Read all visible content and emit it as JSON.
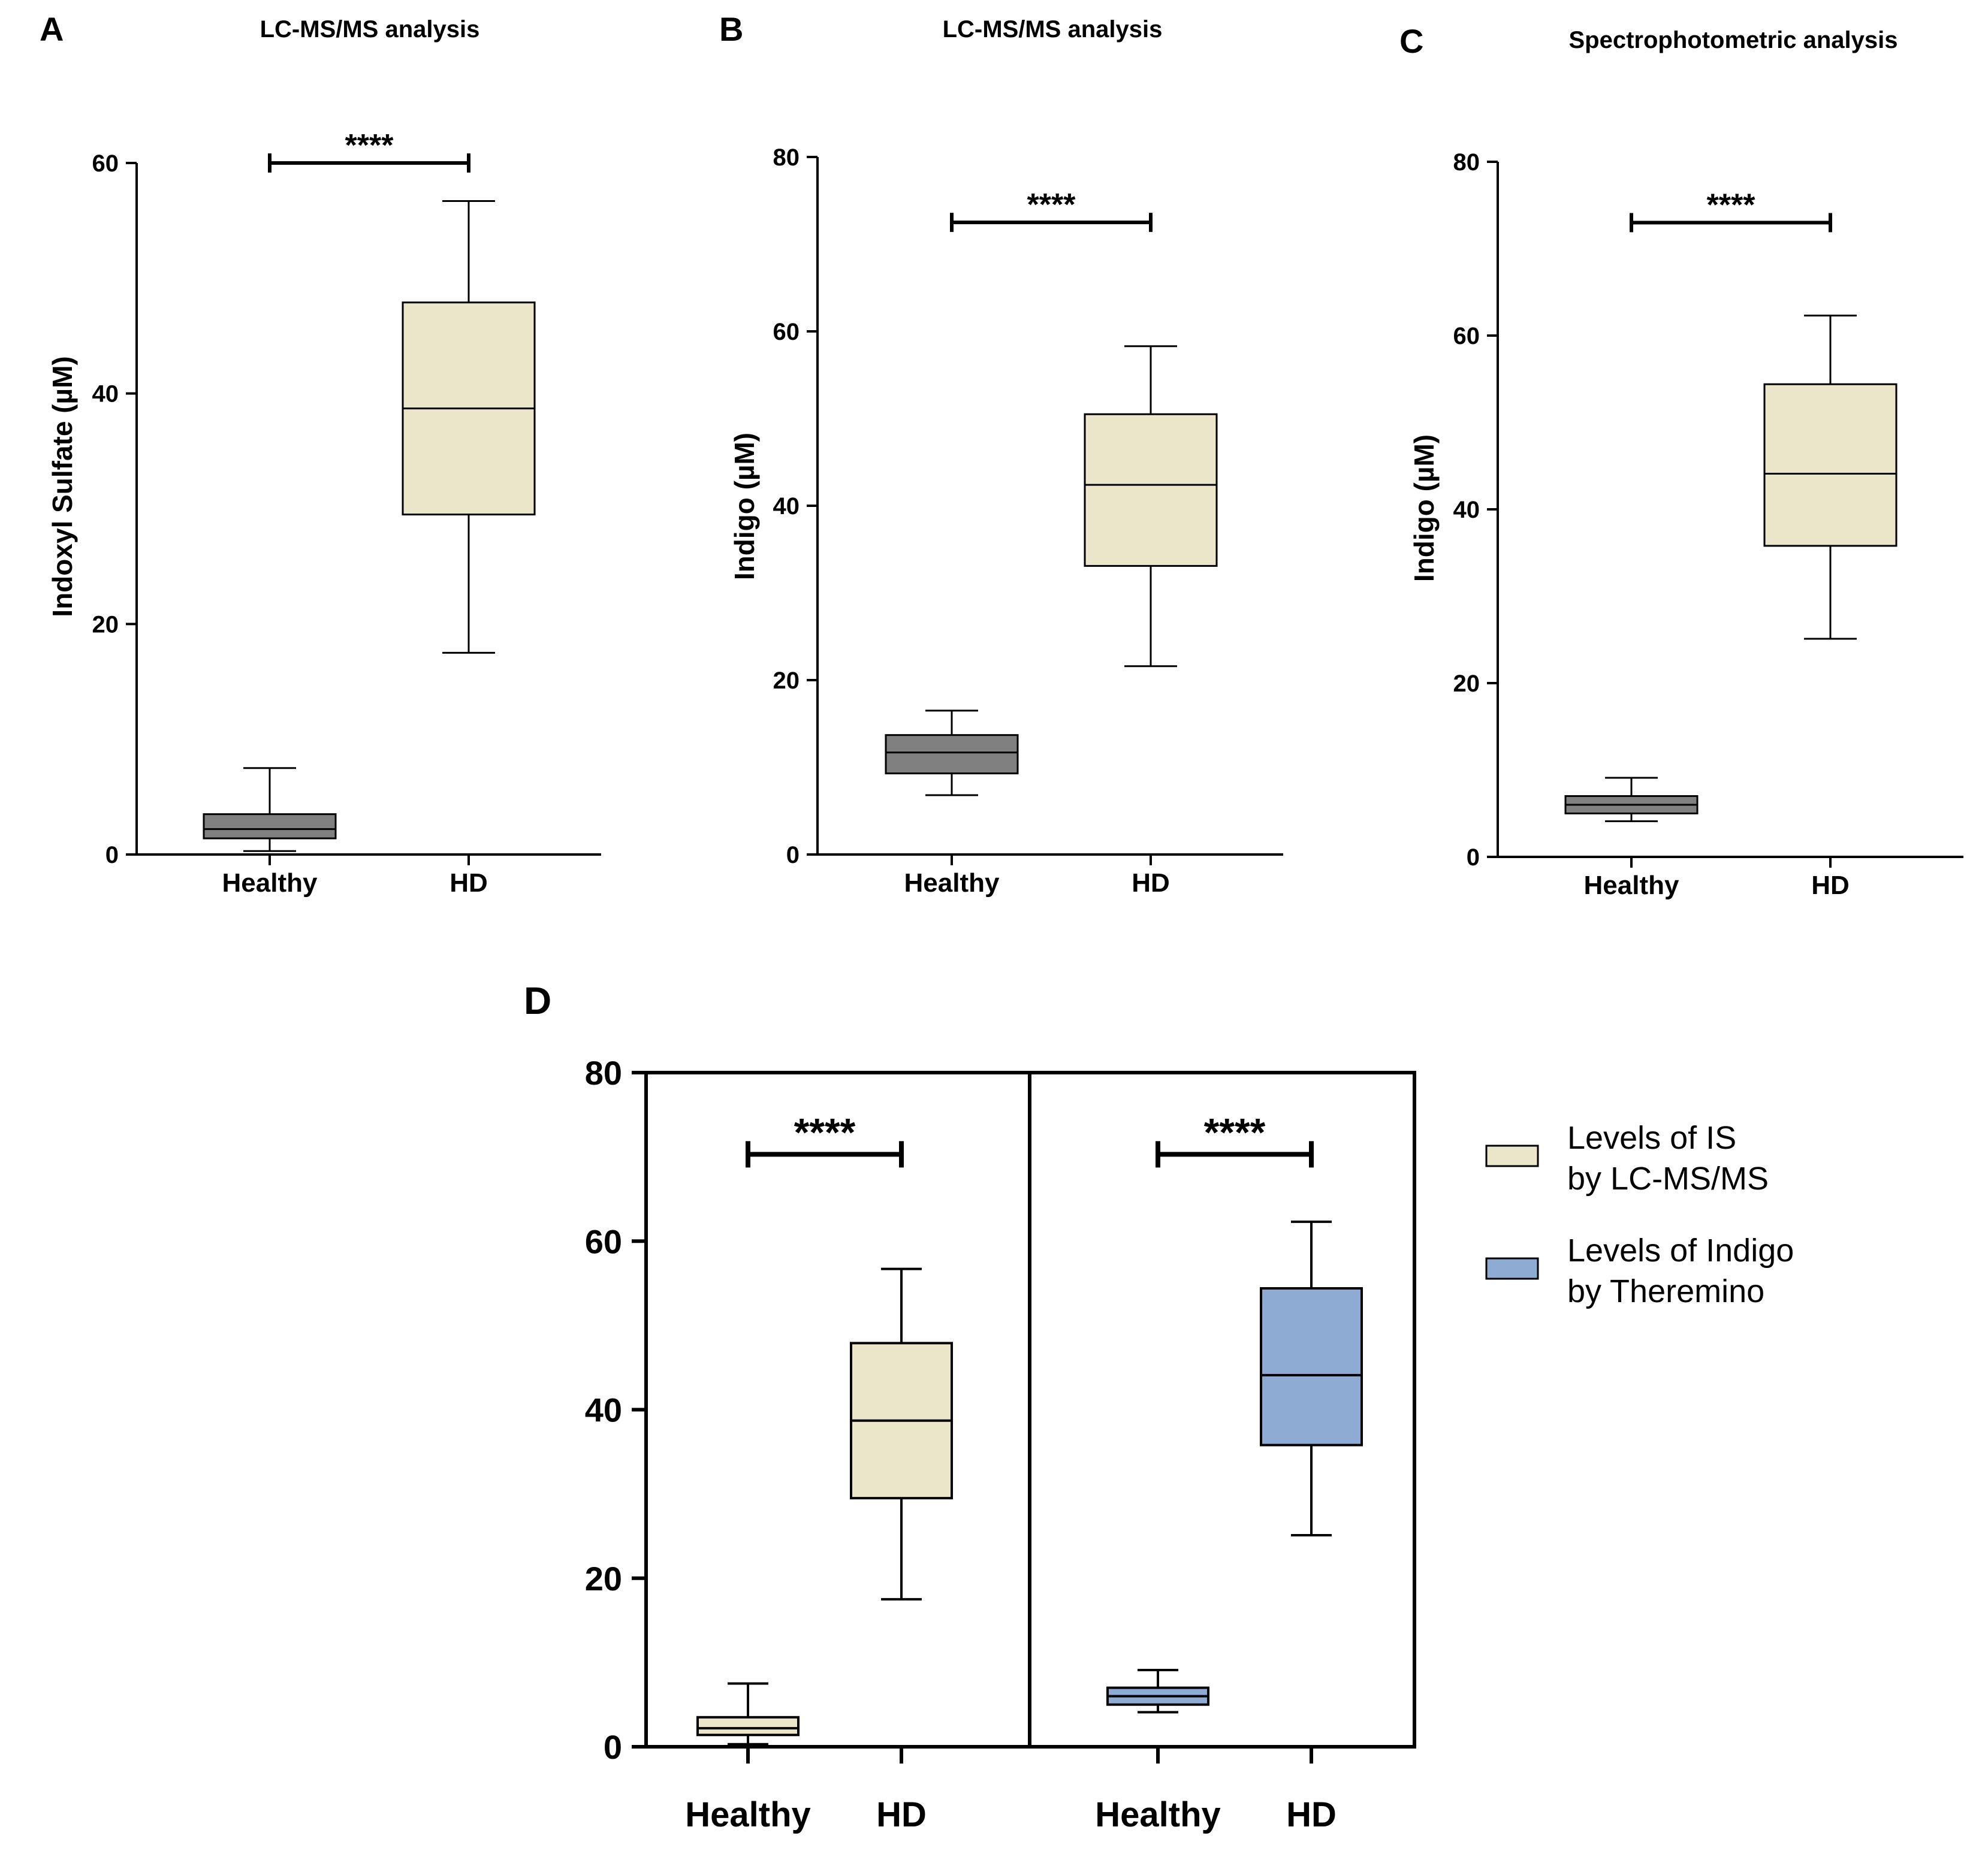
{
  "panels": [
    {
      "letter": "A",
      "title": "LC-MS/MS analysis",
      "ylabel": "Indoxyl Sulfate (µM)",
      "significance": "****"
    },
    {
      "letter": "B",
      "title": "LC-MS/MS analysis",
      "ylabel": "Indigo (µM)",
      "significance": "****"
    },
    {
      "letter": "C",
      "title": "Spectrophotometric analysis",
      "ylabel": "Indigo (µM)",
      "significance": "****"
    },
    {
      "letter": "D",
      "significance_left": "****",
      "significance_right": "****"
    }
  ],
  "legend": {
    "placement": "right",
    "items": [
      {
        "line1": "Levels of IS",
        "line2": "by LC-MS/MS",
        "color": "#ebe6ca"
      },
      {
        "line1": "Levels of Indigo",
        "line2": "by Theremino",
        "color": "#8eabd4"
      }
    ]
  },
  "colors": {
    "healthy_box": "#808080",
    "hd_box": "#ebe6ca",
    "is_box": "#ebe6ca",
    "indigo_box": "#8eabd4"
  },
  "chart_data": [
    {
      "type": "box",
      "panel": "A",
      "title": "LC-MS/MS analysis",
      "ylabel": "Indoxyl Sulfate (µM)",
      "ylim": [
        0,
        60
      ],
      "yticks": [
        0,
        20,
        40,
        60
      ],
      "categories": [
        "Healthy",
        "HD"
      ],
      "boxes": [
        {
          "category": "Healthy",
          "min": 0.3,
          "q1": 1.4,
          "median": 2.2,
          "q3": 3.5,
          "max": 7.5
        },
        {
          "category": "HD",
          "min": 17.5,
          "q1": 29.5,
          "median": 38.7,
          "q3": 47.9,
          "max": 56.7
        }
      ],
      "significance": {
        "from": "Healthy",
        "to": "HD",
        "label": "****",
        "y": 60
      }
    },
    {
      "type": "box",
      "panel": "B",
      "title": "LC-MS/MS analysis",
      "ylabel": "Indigo (µM)",
      "ylim": [
        0,
        80
      ],
      "yticks": [
        0,
        20,
        40,
        60,
        80
      ],
      "categories": [
        "Healthy",
        "HD"
      ],
      "boxes": [
        {
          "category": "Healthy",
          "min": 6.8,
          "q1": 9.3,
          "median": 11.7,
          "q3": 13.7,
          "max": 16.5
        },
        {
          "category": "HD",
          "min": 21.6,
          "q1": 33.1,
          "median": 42.4,
          "q3": 50.5,
          "max": 58.3
        }
      ],
      "significance": {
        "from": "Healthy",
        "to": "HD",
        "label": "****",
        "y": 72.5
      }
    },
    {
      "type": "box",
      "panel": "C",
      "title": "Spectrophotometric analysis",
      "ylabel": "Indigo (µM)",
      "ylim": [
        0,
        80
      ],
      "yticks": [
        0,
        20,
        40,
        60,
        80
      ],
      "categories": [
        "Healthy",
        "HD"
      ],
      "boxes": [
        {
          "category": "Healthy",
          "min": 4.1,
          "q1": 5.0,
          "median": 6.0,
          "q3": 7.0,
          "max": 9.1
        },
        {
          "category": "HD",
          "min": 25.1,
          "q1": 35.8,
          "median": 44.1,
          "q3": 54.4,
          "max": 62.3
        }
      ],
      "significance": {
        "from": "Healthy",
        "to": "HD",
        "label": "****",
        "y": 73
      }
    },
    {
      "type": "box",
      "panel": "D",
      "ylim": [
        0,
        80
      ],
      "yticks": [
        0,
        20,
        40,
        60,
        80
      ],
      "groups": [
        {
          "series": "Levels of IS by LC-MS/MS",
          "categories": [
            "Healthy",
            "HD"
          ],
          "boxes": [
            {
              "category": "Healthy",
              "min": 0.3,
              "q1": 1.4,
              "median": 2.2,
              "q3": 3.5,
              "max": 7.5
            },
            {
              "category": "HD",
              "min": 17.5,
              "q1": 29.5,
              "median": 38.7,
              "q3": 47.9,
              "max": 56.7
            }
          ],
          "significance": {
            "from": "Healthy",
            "to": "HD",
            "label": "****",
            "y": 70.3
          }
        },
        {
          "series": "Levels of Indigo by Theremino",
          "categories": [
            "Healthy",
            "HD"
          ],
          "boxes": [
            {
              "category": "Healthy",
              "min": 4.1,
              "q1": 5.0,
              "median": 6.0,
              "q3": 7.0,
              "max": 9.1
            },
            {
              "category": "HD",
              "min": 25.1,
              "q1": 35.8,
              "median": 44.1,
              "q3": 54.4,
              "max": 62.3
            }
          ],
          "significance": {
            "from": "Healthy",
            "to": "HD",
            "label": "****",
            "y": 70.3
          }
        }
      ]
    }
  ]
}
